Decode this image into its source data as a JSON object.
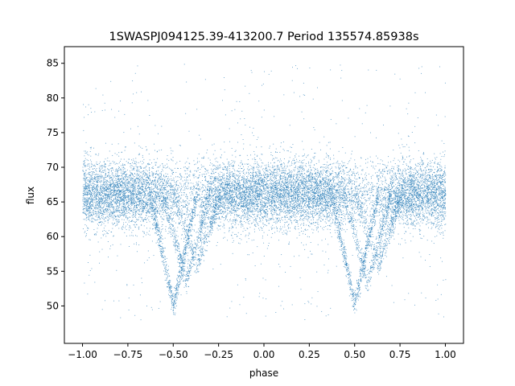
{
  "chart_data": {
    "type": "scatter",
    "title": "1SWASPJ094125.39-413200.7 Period 135574.85938s",
    "xlabel": "phase",
    "ylabel": "flux",
    "xlim": [
      -1.1,
      1.1
    ],
    "ylim": [
      44.6,
      87.4
    ],
    "xticks": [
      -1.0,
      -0.75,
      -0.5,
      -0.25,
      0.0,
      0.25,
      0.5,
      0.75,
      1.0
    ],
    "xtick_labels": [
      "−1.00",
      "−0.75",
      "−0.50",
      "−0.25",
      "0.00",
      "0.25",
      "0.50",
      "0.75",
      "1.00"
    ],
    "yticks": [
      50,
      55,
      60,
      65,
      70,
      75,
      80,
      85
    ],
    "ytick_labels": [
      "50",
      "55",
      "60",
      "65",
      "70",
      "75",
      "80",
      "85"
    ],
    "grid": false,
    "marker_color": "#1f77b4",
    "series": [
      {
        "baseline_flux": 66.2,
        "baseline_spread": 2.4,
        "phase_range": [
          -1.0,
          1.0
        ],
        "eclipse_minima": [
          {
            "phase": -0.5,
            "flux": 50.2
          },
          {
            "phase": 0.5,
            "flux": 50.2
          }
        ],
        "eclipse_branches": [
          {
            "phase_center": -0.5,
            "min_flux": 50.2
          },
          {
            "phase_center": -0.43,
            "min_flux": 53.5
          },
          {
            "phase_center": -0.37,
            "min_flux": 56.0
          },
          {
            "phase_center": 0.5,
            "min_flux": 50.2
          },
          {
            "phase_center": 0.57,
            "min_flux": 53.5
          },
          {
            "phase_center": 0.63,
            "min_flux": 56.0
          }
        ]
      }
    ]
  }
}
